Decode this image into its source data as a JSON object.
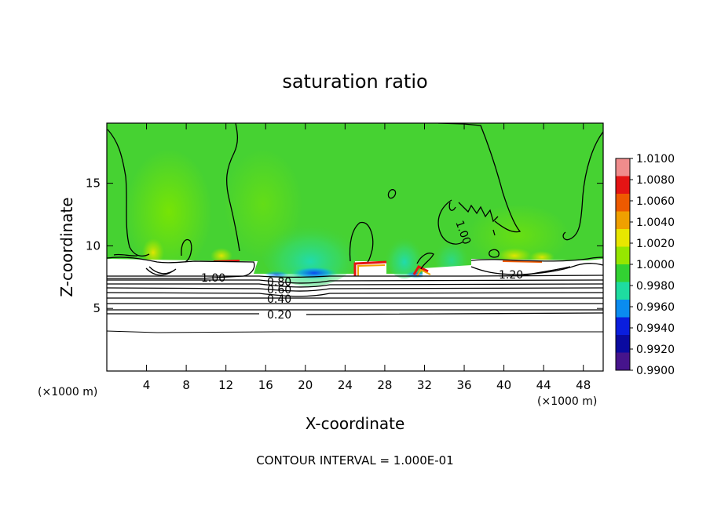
{
  "chart_data": {
    "type": "heatmap",
    "title": "saturation ratio",
    "xlabel": "X-coordinate",
    "ylabel": "Z-coordinate",
    "x_unit": "(×1000 m)",
    "z_unit": "(×1000 m)",
    "xlim": [
      0,
      50
    ],
    "ylim": [
      0,
      19.8
    ],
    "x_ticks": [
      4,
      8,
      12,
      16,
      20,
      24,
      28,
      32,
      36,
      40,
      44,
      48
    ],
    "y_ticks": [
      5,
      10,
      15
    ],
    "colorbar_ticks": [
      "1.0100",
      "1.0080",
      "1.0060",
      "1.0040",
      "1.0020",
      "1.0000",
      "0.9980",
      "0.9960",
      "0.9940",
      "0.9920",
      "0.9900"
    ],
    "colorbar_colors": [
      "#f08c8c",
      "#e41414",
      "#ee5a00",
      "#f0a000",
      "#e8e600",
      "#96e600",
      "#32d232",
      "#1edca0",
      "#0a8cf0",
      "#0a1ede",
      "#0a0aa0",
      "#46148c"
    ],
    "contour_labels": [
      "1.00",
      "0.80",
      "0.60",
      "0.40",
      "0.20",
      "1.00",
      "1.20"
    ],
    "footer": "CONTOUR INTERVAL = 1.000E-01"
  }
}
